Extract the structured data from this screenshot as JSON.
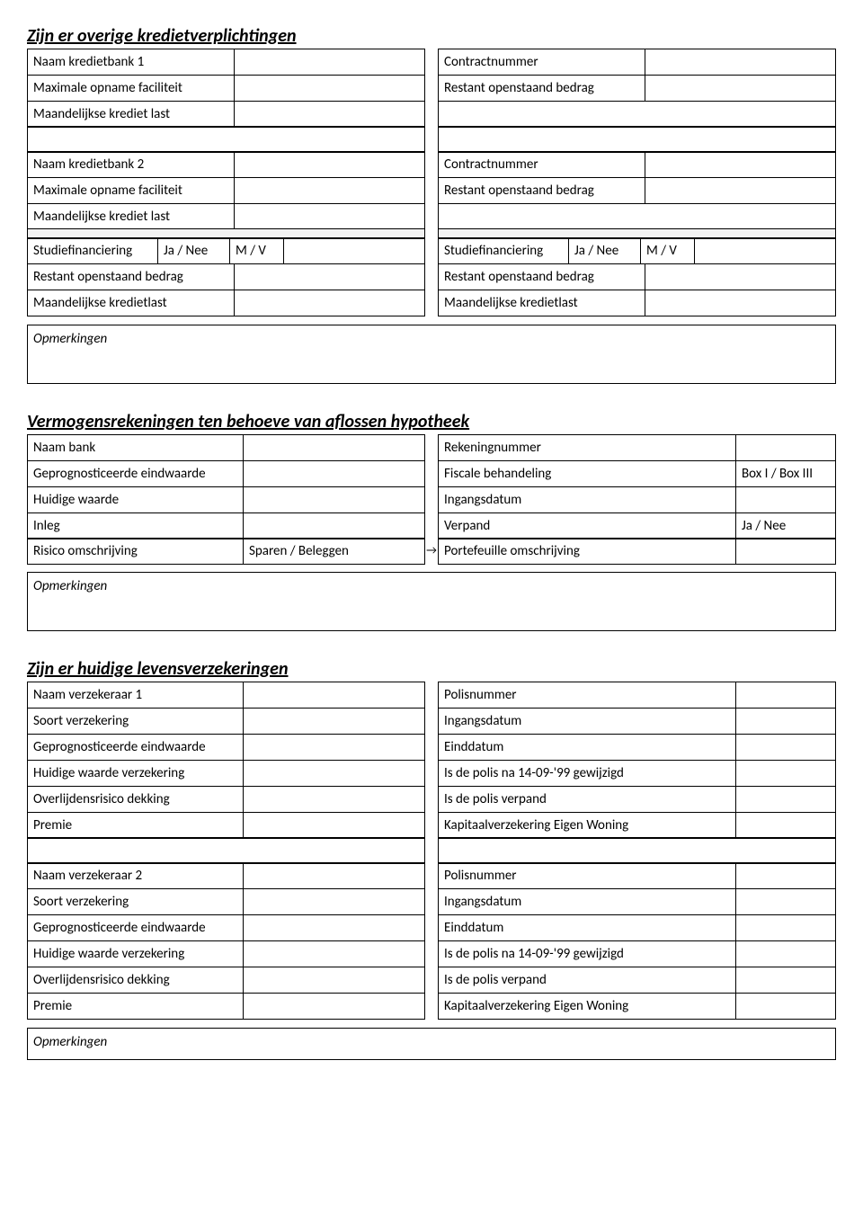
{
  "section1": {
    "title": "Zijn er overige kredietverplichtingen",
    "bank1": {
      "left": [
        {
          "label": "Naam kredietbank 1"
        },
        {
          "label": "Maximale opname faciliteit"
        },
        {
          "label": "Maandelijkse krediet last"
        }
      ],
      "right": [
        {
          "label": "Contractnummer"
        },
        {
          "label": "Restant openstaand bedrag"
        }
      ]
    },
    "bank2": {
      "left": [
        {
          "label": "Naam kredietbank 2"
        },
        {
          "label": "Maximale opname faciliteit"
        },
        {
          "label": "Maandelijkse krediet last"
        }
      ],
      "right": [
        {
          "label": "Contractnummer"
        },
        {
          "label": "Restant openstaand bedrag"
        }
      ]
    },
    "study": {
      "left": {
        "label1": "Studiefinanciering",
        "opt1": "Ja / Nee",
        "opt2": "M / V",
        "label2": "Restant openstaand bedrag",
        "label3": "Maandelijkse kredietlast"
      },
      "right": {
        "label1": "Studiefinanciering",
        "opt1": "Ja / Nee",
        "opt2": "M / V",
        "label2": "Restant openstaand bedrag",
        "label3": "Maandelijkse kredietlast"
      }
    },
    "remarks": "Opmerkingen"
  },
  "section2": {
    "title": "Vermogensrekeningen ten behoeve van aflossen hypotheek",
    "left": [
      {
        "label": "Naam bank"
      },
      {
        "label": "Geprognosticeerde eindwaarde"
      },
      {
        "label": "Huidige waarde"
      },
      {
        "label": "Inleg"
      }
    ],
    "right": [
      {
        "label": "Rekeningnummer",
        "val": ""
      },
      {
        "label": "Fiscale behandeling",
        "val": "Box I / Box III"
      },
      {
        "label": "Ingangsdatum",
        "val": ""
      },
      {
        "label": "Verpand",
        "val": "Ja / Nee"
      }
    ],
    "risico": {
      "label": "Risico omschrijving",
      "val": "Sparen / Beleggen"
    },
    "porte": {
      "label": "Portefeuille omschrijving"
    },
    "remarks": "Opmerkingen"
  },
  "section3": {
    "title": "Zijn er huidige levensverzekeringen",
    "ins1": {
      "left": [
        {
          "label": "Naam verzekeraar 1"
        },
        {
          "label": "Soort verzekering"
        },
        {
          "label": "Geprognosticeerde eindwaarde"
        },
        {
          "label": "Huidige waarde verzekering"
        },
        {
          "label": "Overlijdensrisico dekking"
        },
        {
          "label": "Premie"
        }
      ],
      "right": [
        {
          "label": "Polisnummer"
        },
        {
          "label": "Ingangsdatum"
        },
        {
          "label": "Einddatum"
        },
        {
          "label": "Is de polis na 14-09-'99 gewijzigd"
        },
        {
          "label": "Is de polis verpand"
        },
        {
          "label": "Kapitaalverzekering Eigen Woning"
        }
      ]
    },
    "ins2": {
      "left": [
        {
          "label": "Naam verzekeraar 2"
        },
        {
          "label": "Soort verzekering"
        },
        {
          "label": "Geprognosticeerde eindwaarde"
        },
        {
          "label": "Huidige waarde verzekering"
        },
        {
          "label": "Overlijdensrisico dekking"
        },
        {
          "label": "Premie"
        }
      ],
      "right": [
        {
          "label": "Polisnummer"
        },
        {
          "label": "Ingangsdatum"
        },
        {
          "label": "Einddatum"
        },
        {
          "label": "Is de polis na 14-09-'99 gewijzigd"
        },
        {
          "label": "Is de polis verpand"
        },
        {
          "label": "Kapitaalverzekering Eigen Woning"
        }
      ]
    },
    "remarks": "Opmerkingen"
  }
}
